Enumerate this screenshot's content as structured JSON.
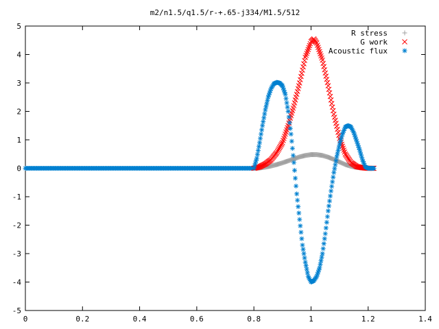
{
  "chart_data": {
    "type": "scatter",
    "title": "m2/n1.5/q1.5/r-+.65-j334/M1.5/512",
    "xlabel": "",
    "ylabel": "",
    "xlim": [
      0,
      1.4
    ],
    "ylim": [
      -5,
      5
    ],
    "x_ticks": [
      0,
      0.2,
      0.4,
      0.6,
      0.8,
      1,
      1.2,
      1.4
    ],
    "x_tick_labels": [
      "0",
      "0.2",
      "0.4",
      "0.6",
      "0.8",
      "1",
      "1.2",
      "1.4"
    ],
    "y_ticks": [
      -5,
      -4,
      -3,
      -2,
      -1,
      0,
      1,
      2,
      3,
      4,
      5
    ],
    "y_tick_labels": [
      "-5",
      "-4",
      "-3",
      "-2",
      "-1",
      "0",
      "1",
      "2",
      "3",
      "4",
      "5"
    ],
    "grid": false,
    "legend_position": "top-right",
    "series": [
      {
        "name": "R stress",
        "marker": "plus",
        "color": "#a0a0a0",
        "x": [
          0.8,
          0.82,
          0.84,
          0.86,
          0.88,
          0.9,
          0.92,
          0.94,
          0.96,
          0.98,
          1.0,
          1.02,
          1.04,
          1.06,
          1.08,
          1.1,
          1.12,
          1.14,
          1.16,
          1.18,
          1.2,
          1.22
        ],
        "y": [
          0.0,
          0.01,
          0.04,
          0.08,
          0.13,
          0.19,
          0.26,
          0.33,
          0.4,
          0.45,
          0.48,
          0.48,
          0.45,
          0.39,
          0.31,
          0.22,
          0.13,
          0.07,
          0.03,
          0.01,
          0.0,
          0.0
        ]
      },
      {
        "name": "G work",
        "marker": "cross",
        "color": "#ff0000",
        "x": [
          0.8,
          0.82,
          0.84,
          0.86,
          0.88,
          0.9,
          0.92,
          0.94,
          0.96,
          0.98,
          1.0,
          1.01,
          1.02,
          1.04,
          1.06,
          1.08,
          1.1,
          1.12,
          1.14,
          1.16,
          1.18,
          1.2,
          1.22
        ],
        "y": [
          0.0,
          0.05,
          0.15,
          0.3,
          0.55,
          0.9,
          1.5,
          2.2,
          3.0,
          3.9,
          4.45,
          4.55,
          4.4,
          3.8,
          2.9,
          1.9,
          1.05,
          0.5,
          0.2,
          0.06,
          0.02,
          0.0,
          0.0
        ]
      },
      {
        "name": "Acoustic flux",
        "marker": "star",
        "color": "#0080d0",
        "x": [
          0.8,
          0.81,
          0.82,
          0.83,
          0.84,
          0.85,
          0.86,
          0.87,
          0.88,
          0.89,
          0.9,
          0.91,
          0.92,
          0.93,
          0.94,
          0.95,
          0.96,
          0.97,
          0.98,
          0.99,
          1.0,
          1.01,
          1.02,
          1.03,
          1.04,
          1.05,
          1.06,
          1.07,
          1.08,
          1.09,
          1.1,
          1.11,
          1.12,
          1.13,
          1.14,
          1.15,
          1.16,
          1.17,
          1.18,
          1.19,
          1.2,
          1.21,
          1.22
        ],
        "y": [
          0.0,
          0.35,
          0.9,
          1.5,
          2.05,
          2.5,
          2.8,
          2.97,
          3.02,
          3.0,
          2.9,
          2.6,
          2.0,
          1.2,
          0.2,
          -0.9,
          -1.8,
          -2.7,
          -3.3,
          -3.8,
          -4.0,
          -3.95,
          -3.8,
          -3.5,
          -3.0,
          -2.3,
          -1.5,
          -0.8,
          -0.15,
          0.4,
          0.85,
          1.2,
          1.45,
          1.5,
          1.45,
          1.25,
          0.95,
          0.65,
          0.3,
          0.05,
          0.0,
          0.0,
          0.0
        ]
      }
    ]
  },
  "legend": {
    "entries": [
      {
        "label": "R stress",
        "symbol": "+",
        "color": "#a0a0a0"
      },
      {
        "label": "G work",
        "symbol": "×",
        "color": "#ff0000"
      },
      {
        "label": "Acoustic flux",
        "symbol": "✱",
        "color": "#0080d0"
      }
    ]
  }
}
